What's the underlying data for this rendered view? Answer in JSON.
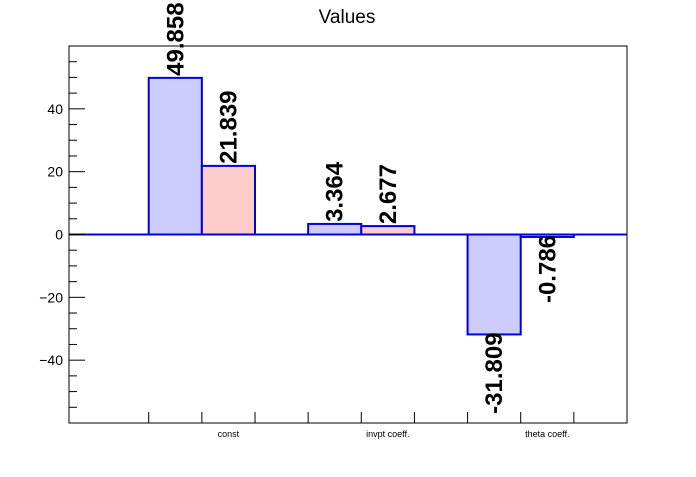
{
  "chart_data": {
    "type": "bar",
    "title": "Values",
    "xlabel": "",
    "ylabel": "",
    "categories": [
      "const",
      "invpt coeff.",
      "theta coeff."
    ],
    "series": [
      {
        "values": [
          49.858,
          3.364,
          -31.809
        ],
        "labels": [
          "49.858",
          "3.364",
          "-31.809"
        ],
        "fill": "#ccccff",
        "stroke": "#0000dd"
      },
      {
        "values": [
          21.839,
          2.677,
          -0.786
        ],
        "labels": [
          "21.839",
          "2.677",
          "-0.786"
        ],
        "fill": "#ffcccc",
        "stroke": "#0000dd"
      }
    ],
    "ylim": [
      -60,
      60
    ],
    "yticks": [
      -40,
      -20,
      0,
      20,
      40
    ],
    "ytick_labels": [
      "−40",
      "−20",
      "0",
      "20",
      "40"
    ],
    "grid": false,
    "legend": "none"
  }
}
